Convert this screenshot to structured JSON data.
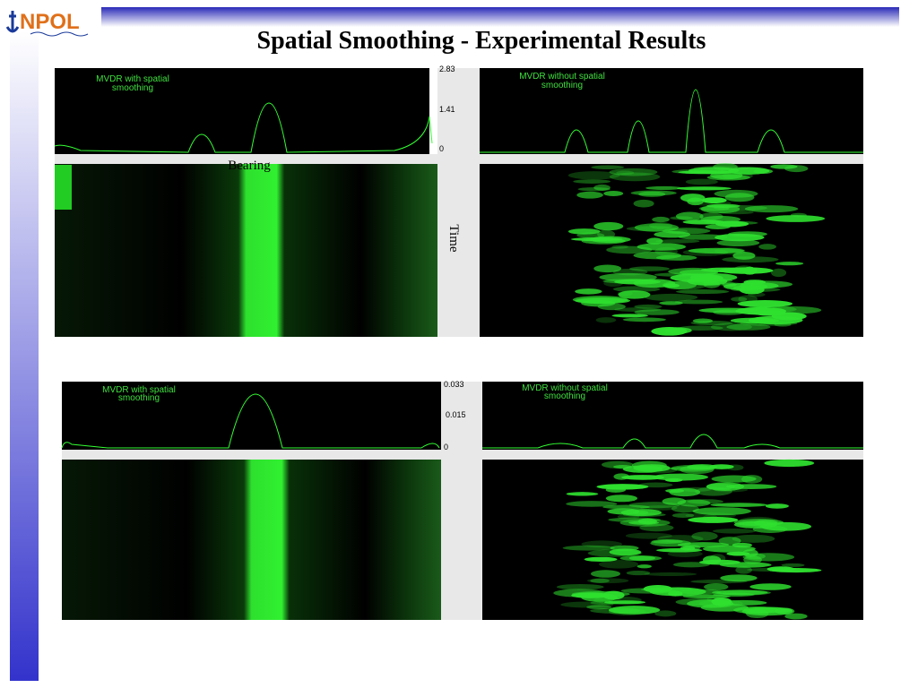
{
  "header": {
    "logo": "NPOL",
    "title": "Spatial Smoothing - Experimental Results"
  },
  "panels": [
    {
      "left_label": [
        "MVDR with spatial",
        "smoothing"
      ],
      "right_label": [
        "MVDR without spatial",
        "smoothing"
      ],
      "scale_labels": [
        "2.83",
        "1.41",
        "0"
      ],
      "x_label": "Bearing",
      "y_label": "Time"
    },
    {
      "left_label": [
        "MVDR with spatial",
        "smoothing"
      ],
      "right_label": [
        "MVDR without spatial",
        "smoothing"
      ],
      "scale_labels": [
        "0.033",
        "0.015",
        "0"
      ]
    }
  ]
}
